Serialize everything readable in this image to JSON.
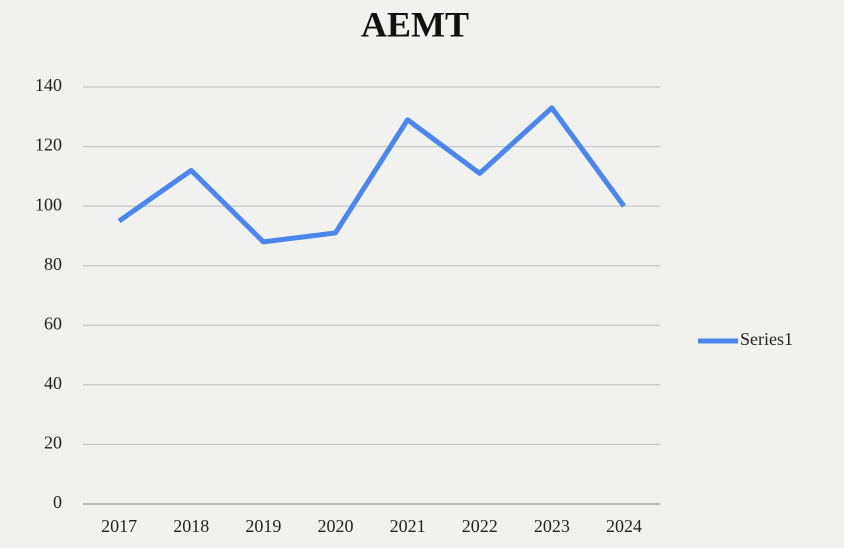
{
  "chart_data": {
    "type": "line",
    "title": "AEMT",
    "categories": [
      "2017",
      "2018",
      "2019",
      "2020",
      "2021",
      "2022",
      "2023",
      "2024"
    ],
    "series": [
      {
        "name": "Series1",
        "color": "#4a86ec",
        "values": [
          95,
          112,
          88,
          91,
          129,
          111,
          133,
          100
        ]
      }
    ],
    "ylim": [
      0,
      140
    ],
    "yticks": [
      0,
      20,
      40,
      60,
      80,
      100,
      120,
      140
    ],
    "grid": true,
    "legend": "right"
  }
}
